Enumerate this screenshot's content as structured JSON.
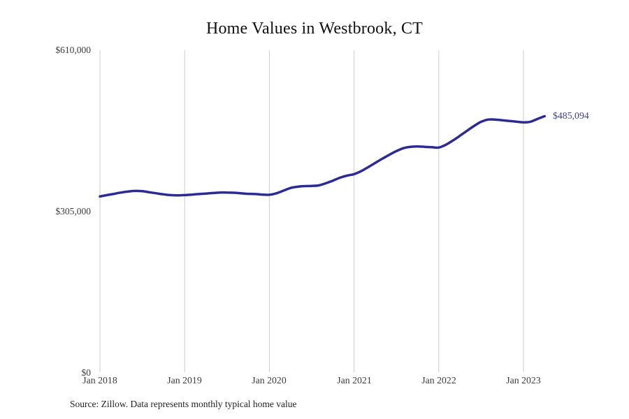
{
  "title": "Home Values in Westbrook, CT",
  "source_note": "Source: Zillow. Data represents monthly typical home value",
  "colors": {
    "line": "#2d2a94",
    "end_label": "#3c4097",
    "grid": "#cccccc",
    "title_text": "#111111",
    "tick_text": "#3d3d3d"
  },
  "chart_data": {
    "type": "line",
    "title": "Home Values in Westbrook, CT",
    "xlabel": "",
    "ylabel": "",
    "x_unit": "month",
    "x_start": "Jan 2018",
    "x_end": "Apr 2023",
    "xtick_labels": [
      "Jan 2018",
      "Jan 2019",
      "Jan 2020",
      "Jan 2021",
      "Jan 2022",
      "Jan 2023"
    ],
    "xtick_month_indices": [
      0,
      12,
      24,
      36,
      48,
      60
    ],
    "ytick_labels": [
      "$0",
      "$305,000",
      "$610,000"
    ],
    "ytick_values": [
      0,
      305000,
      610000
    ],
    "ylim": [
      0,
      610000
    ],
    "grid": "vertical-only",
    "legend": "none",
    "last_value": 485094,
    "last_value_label": "$485,094",
    "series": [
      {
        "name": "Monthly typical home value",
        "values": [
          333000,
          335500,
          338000,
          340500,
          342500,
          343500,
          343000,
          341000,
          339000,
          337000,
          335500,
          335000,
          335500,
          336500,
          337500,
          338500,
          339500,
          340500,
          340500,
          340000,
          339000,
          338000,
          337500,
          336500,
          336200,
          339000,
          344000,
          349000,
          351500,
          352700,
          353000,
          354000,
          358000,
          363000,
          368500,
          372500,
          375300,
          381000,
          388500,
          396500,
          404500,
          412000,
          419000,
          424500,
          427000,
          427800,
          427000,
          426300,
          425700,
          431000,
          439000,
          448000,
          457500,
          466500,
          474500,
          478700,
          478700,
          477400,
          476000,
          474700,
          473400,
          474700,
          480000,
          485094
        ]
      }
    ]
  }
}
